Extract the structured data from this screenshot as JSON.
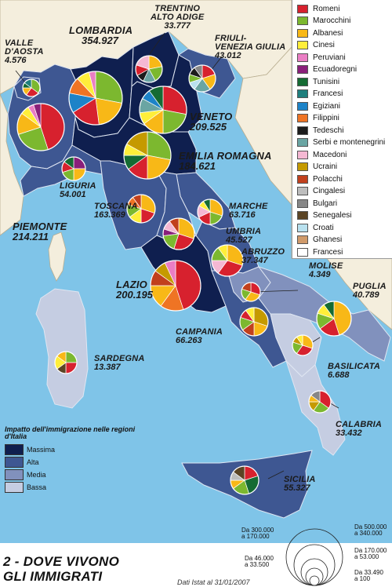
{
  "title": {
    "line1": "2 - DOVE VIVONO",
    "line2": "GLI IMMIGRATI"
  },
  "source": "Dati Istat al 31/01/2007",
  "nationalities": [
    {
      "name": "Romeni",
      "color": "#d7212e"
    },
    {
      "name": "Marocchini",
      "color": "#7cb82f"
    },
    {
      "name": "Albanesi",
      "color": "#f8b817"
    },
    {
      "name": "Cinesi",
      "color": "#ffee3a"
    },
    {
      "name": "Peruviani",
      "color": "#ea7ec4"
    },
    {
      "name": "Ecuadoregni",
      "color": "#8a1f7a"
    },
    {
      "name": "Tunisini",
      "color": "#156b33"
    },
    {
      "name": "Francesi",
      "color": "#1f7f7d"
    },
    {
      "name": "Egiziani",
      "color": "#1d83c8"
    },
    {
      "name": "Filippini",
      "color": "#ef7424"
    },
    {
      "name": "Tedeschi",
      "color": "#1c1c1c"
    },
    {
      "name": "Serbi e montenegrini",
      "color": "#6aa5a3"
    },
    {
      "name": "Macedoni",
      "color": "#f5b8d3"
    },
    {
      "name": "Ucraini",
      "color": "#c59a00"
    },
    {
      "name": "Polacchi",
      "color": "#c1401d"
    },
    {
      "name": "Cingalesi",
      "color": "#bdbdbd"
    },
    {
      "name": "Bulgari",
      "color": "#878787"
    },
    {
      "name": "Senegalesi",
      "color": "#5b4424"
    },
    {
      "name": "Croati",
      "color": "#b9e1ef"
    },
    {
      "name": "Ghanesi",
      "color": "#d09a6a"
    },
    {
      "name": "Francesi",
      "color": "#ffffff"
    }
  ],
  "impact": {
    "title": "Impatto dell'immigrazione nelle regioni d'Italia",
    "levels": [
      {
        "label": "Massima",
        "color": "#0f1f4f"
      },
      {
        "label": "Alta",
        "color": "#3e5792"
      },
      {
        "label": "Media",
        "color": "#8191bd"
      },
      {
        "label": "Bassa",
        "color": "#c5cde2"
      }
    ]
  },
  "size_legend": {
    "labels": [
      "Da 500.000\na 340.000",
      "Da 300.000\na 170.000",
      "Da 170.000\na 53.000",
      "Da 46.000\na 33.500",
      "Da 33.490\na 100"
    ]
  },
  "regions": [
    {
      "name": "LOMBARDIA",
      "value": "354.927",
      "level": "Massima",
      "slices": [
        [
          "Marocchini",
          28
        ],
        [
          "Albanesi",
          20
        ],
        [
          "Romeni",
          18
        ],
        [
          "Egiziani",
          12
        ],
        [
          "Filippini",
          10
        ],
        [
          "Cinesi",
          8
        ],
        [
          "Peruviani",
          4
        ]
      ]
    },
    {
      "name": "PIEMONTE",
      "value": "214.211",
      "level": "Alta",
      "slices": [
        [
          "Romeni",
          45
        ],
        [
          "Marocchini",
          25
        ],
        [
          "Albanesi",
          15
        ],
        [
          "Cinesi",
          6
        ],
        [
          "Peruviani",
          4
        ],
        [
          "Ecuadoregni",
          5
        ]
      ]
    },
    {
      "name": "VALLE D'AOSTA",
      "value": "4.576",
      "level": "Alta",
      "slices": [
        [
          "Marocchini",
          35
        ],
        [
          "Romeni",
          25
        ],
        [
          "Albanesi",
          15
        ],
        [
          "Tunisini",
          10
        ],
        [
          "Francesi",
          15
        ]
      ]
    },
    {
      "name": "TRENTINO ALTO ADIGE",
      "value": "33.777",
      "level": "Massima",
      "slices": [
        [
          "Albanesi",
          22
        ],
        [
          "Marocchini",
          20
        ],
        [
          "Serbi e montenegrini",
          15
        ],
        [
          "Tedeschi",
          10
        ],
        [
          "Romeni",
          13
        ],
        [
          "Macedoni",
          20
        ]
      ]
    },
    {
      "name": "FRIULI-VENEZIA GIULIA",
      "value": "43.012",
      "level": "Alta",
      "slices": [
        [
          "Romeni",
          20
        ],
        [
          "Albanesi",
          20
        ],
        [
          "Serbi e montenegrini",
          20
        ],
        [
          "Croati",
          10
        ],
        [
          "Marocchini",
          10
        ],
        [
          "Tedeschi",
          10
        ],
        [
          "Bulgari",
          10
        ]
      ]
    },
    {
      "name": "VENETO",
      "value": "209.525",
      "level": "Massima",
      "slices": [
        [
          "Romeni",
          28
        ],
        [
          "Marocchini",
          22
        ],
        [
          "Albanesi",
          15
        ],
        [
          "Cinesi",
          8
        ],
        [
          "Serbi e montenegrini",
          10
        ],
        [
          "Egiziani",
          7
        ],
        [
          "Tunisini",
          10
        ]
      ]
    },
    {
      "name": "EMILIA ROMAGNA",
      "value": "184.621",
      "level": "Massima",
      "slices": [
        [
          "Marocchini",
          28
        ],
        [
          "Albanesi",
          22
        ],
        [
          "Romeni",
          15
        ],
        [
          "Tunisini",
          10
        ],
        [
          "Cinesi",
          8
        ],
        [
          "Ucraini",
          17
        ]
      ]
    },
    {
      "name": "LIGURIA",
      "value": "54.001",
      "level": "Alta",
      "slices": [
        [
          "Ecuadoregni",
          25
        ],
        [
          "Albanesi",
          25
        ],
        [
          "Marocchini",
          20
        ],
        [
          "Romeni",
          15
        ],
        [
          "Tunisini",
          15
        ]
      ]
    },
    {
      "name": "TOSCANA",
      "value": "163.369",
      "level": "Alta",
      "slices": [
        [
          "Albanesi",
          30
        ],
        [
          "Romeni",
          20
        ],
        [
          "Cinesi",
          15
        ],
        [
          "Marocchini",
          15
        ],
        [
          "Filippini",
          10
        ],
        [
          "Polacchi",
          10
        ]
      ]
    },
    {
      "name": "MARCHE",
      "value": "63.716",
      "level": "Alta",
      "slices": [
        [
          "Albanesi",
          30
        ],
        [
          "Marocchini",
          20
        ],
        [
          "Romeni",
          18
        ],
        [
          "Macedoni",
          15
        ],
        [
          "Cinesi",
          8
        ],
        [
          "Tunisini",
          9
        ]
      ]
    },
    {
      "name": "UMBRIA",
      "value": "45.527",
      "level": "Alta",
      "slices": [
        [
          "Albanesi",
          30
        ],
        [
          "Romeni",
          25
        ],
        [
          "Marocchini",
          18
        ],
        [
          "Ecuadoregni",
          7
        ],
        [
          "Macedoni",
          10
        ],
        [
          "Polacchi",
          10
        ]
      ]
    },
    {
      "name": "LAZIO",
      "value": "200.195",
      "level": "Massima",
      "slices": [
        [
          "Romeni",
          45
        ],
        [
          "Filippini",
          15
        ],
        [
          "Albanesi",
          15
        ],
        [
          "Polacchi",
          10
        ],
        [
          "Ucraini",
          8
        ],
        [
          "Peruviani",
          7
        ]
      ]
    },
    {
      "name": "ABRUZZO",
      "value": "37.347",
      "level": "Alta",
      "slices": [
        [
          "Albanesi",
          30
        ],
        [
          "Romeni",
          30
        ],
        [
          "Macedoni",
          15
        ],
        [
          "Marocchini",
          15
        ],
        [
          "Cinesi",
          10
        ]
      ]
    },
    {
      "name": "MOLISE",
      "value": "4.349",
      "level": "Media",
      "slices": [
        [
          "Romeni",
          30
        ],
        [
          "Albanesi",
          30
        ],
        [
          "Marocchini",
          20
        ],
        [
          "Polacchi",
          20
        ]
      ]
    },
    {
      "name": "CAMPANIA",
      "value": "66.263",
      "level": "Alta",
      "slices": [
        [
          "Ucraini",
          30
        ],
        [
          "Albanesi",
          20
        ],
        [
          "Polacchi",
          15
        ],
        [
          "Marocchini",
          15
        ],
        [
          "Romeni",
          10
        ],
        [
          "Cinesi",
          10
        ]
      ]
    },
    {
      "name": "PUGLIA",
      "value": "40.789",
      "level": "Media",
      "slices": [
        [
          "Albanesi",
          45
        ],
        [
          "Romeni",
          20
        ],
        [
          "Marocchini",
          15
        ],
        [
          "Cinesi",
          10
        ],
        [
          "Tunisini",
          10
        ]
      ]
    },
    {
      "name": "BASILICATA",
      "value": "6.688",
      "level": "Bassa",
      "slices": [
        [
          "Albanesi",
          30
        ],
        [
          "Romeni",
          30
        ],
        [
          "Marocchini",
          20
        ],
        [
          "Ucraini",
          10
        ],
        [
          "Cinesi",
          10
        ]
      ]
    },
    {
      "name": "CALABRIA",
      "value": "33.432",
      "level": "Media",
      "slices": [
        [
          "Romeni",
          35
        ],
        [
          "Marocchini",
          25
        ],
        [
          "Ucraini",
          15
        ],
        [
          "Albanesi",
          10
        ],
        [
          "Bulgari",
          15
        ]
      ]
    },
    {
      "name": "SICILIA",
      "value": "55.327",
      "level": "Alta",
      "slices": [
        [
          "Romeni",
          20
        ],
        [
          "Tunisini",
          25
        ],
        [
          "Marocchini",
          20
        ],
        [
          "Albanesi",
          10
        ],
        [
          "Cingalesi",
          10
        ],
        [
          "Senegalesi",
          15
        ]
      ]
    },
    {
      "name": "SARDEGNA",
      "value": "13.387",
      "level": "Bassa",
      "slices": [
        [
          "Marocchini",
          25
        ],
        [
          "Romeni",
          25
        ],
        [
          "Senegalesi",
          15
        ],
        [
          "Cinesi",
          20
        ],
        [
          "Albanesi",
          15
        ]
      ]
    }
  ]
}
